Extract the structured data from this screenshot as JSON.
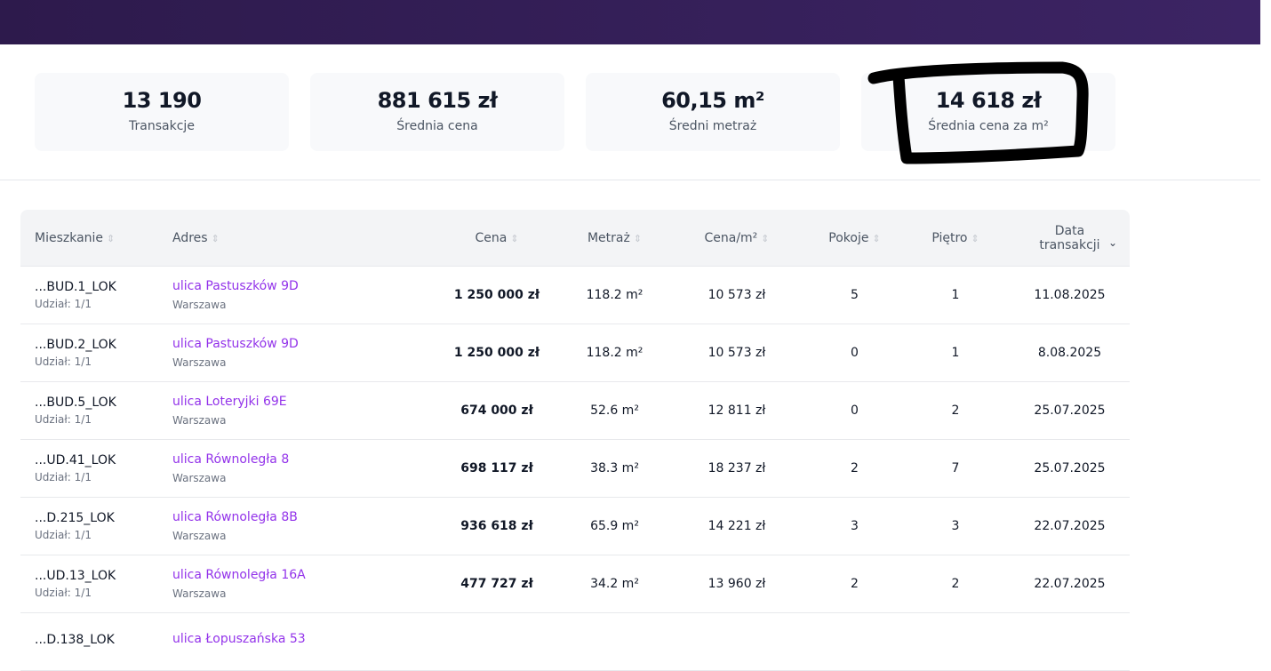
{
  "stats": [
    {
      "value": "13 190",
      "label": "Transakcje"
    },
    {
      "value": "881 615 zł",
      "label": "Średnia cena"
    },
    {
      "value": "60,15 m²",
      "label": "Średni metraż"
    },
    {
      "value": "14 618 zł",
      "label": "Średnia cena za m²"
    }
  ],
  "table": {
    "headers": [
      "Mieszkanie",
      "Adres",
      "Cena",
      "Metraż",
      "Cena/m²",
      "Pokoje",
      "Piętro",
      "Data transakcji"
    ],
    "rows": [
      {
        "id": "...BUD.1_LOK",
        "share": "Udział: 1/1",
        "street": "ulica Pastuszków 9D",
        "city": "Warszawa",
        "price": "1 250 000 zł",
        "area": "118.2 m²",
        "ppm": "10 573 zł",
        "rooms": "5",
        "floor": "1",
        "date": "11.08.2025"
      },
      {
        "id": "...BUD.2_LOK",
        "share": "Udział: 1/1",
        "street": "ulica Pastuszków 9D",
        "city": "Warszawa",
        "price": "1 250 000 zł",
        "area": "118.2 m²",
        "ppm": "10 573 zł",
        "rooms": "0",
        "floor": "1",
        "date": "8.08.2025"
      },
      {
        "id": "...BUD.5_LOK",
        "share": "Udział: 1/1",
        "street": "ulica Loteryjki 69E",
        "city": "Warszawa",
        "price": "674 000 zł",
        "area": "52.6 m²",
        "ppm": "12 811 zł",
        "rooms": "0",
        "floor": "2",
        "date": "25.07.2025"
      },
      {
        "id": "...UD.41_LOK",
        "share": "Udział: 1/1",
        "street": "ulica Równoległa 8",
        "city": "Warszawa",
        "price": "698 117 zł",
        "area": "38.3 m²",
        "ppm": "18 237 zł",
        "rooms": "2",
        "floor": "7",
        "date": "25.07.2025"
      },
      {
        "id": "...D.215_LOK",
        "share": "Udział: 1/1",
        "street": "ulica Równoległa 8B",
        "city": "Warszawa",
        "price": "936 618 zł",
        "area": "65.9 m²",
        "ppm": "14 221 zł",
        "rooms": "3",
        "floor": "3",
        "date": "22.07.2025"
      },
      {
        "id": "...UD.13_LOK",
        "share": "Udział: 1/1",
        "street": "ulica Równoległa 16A",
        "city": "Warszawa",
        "price": "477 727 zł",
        "area": "34.2 m²",
        "ppm": "13 960 zł",
        "rooms": "2",
        "floor": "2",
        "date": "22.07.2025"
      },
      {
        "id": "...D.138_LOK",
        "share": "",
        "street": "ulica Łopuszańska 53",
        "city": "",
        "price": "",
        "area": "",
        "ppm": "",
        "rooms": "",
        "floor": "",
        "date": ""
      }
    ]
  },
  "colors": {
    "header_bar": "#2d1a4c",
    "link": "#9333ea",
    "annotation": "#000000"
  },
  "icons": {
    "sort": "sort-updown-icon",
    "sort_active": "chevron-down-icon"
  }
}
